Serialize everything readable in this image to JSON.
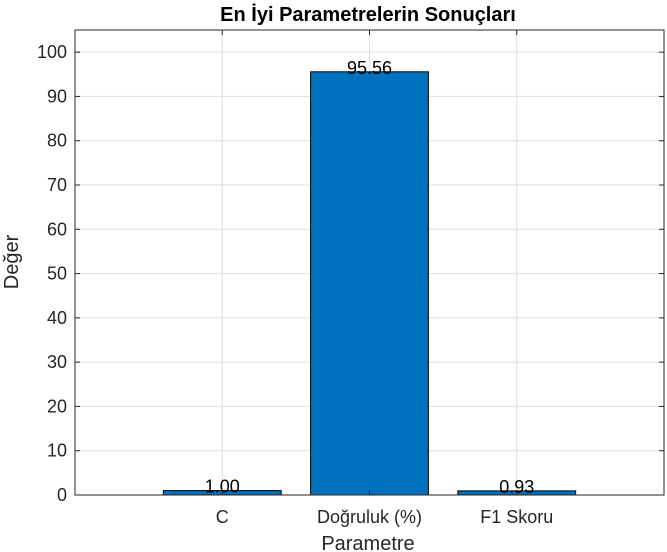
{
  "chart_data": {
    "type": "bar",
    "title": "En İyi Parametrelerin Sonuçları",
    "xlabel": "Parametre",
    "ylabel": "Değer",
    "categories": [
      "C",
      "Doğruluk (%)",
      "F1 Skoru"
    ],
    "values": [
      1.0,
      95.56,
      0.93
    ],
    "data_labels": [
      "1.00",
      "95.56",
      "0.93"
    ],
    "ylim": [
      0,
      105
    ],
    "yticks": [
      0,
      10,
      20,
      30,
      40,
      50,
      60,
      70,
      80,
      90,
      100
    ],
    "grid": true,
    "bar_color": "#0072BD",
    "bar_edge_color": "#000000"
  }
}
